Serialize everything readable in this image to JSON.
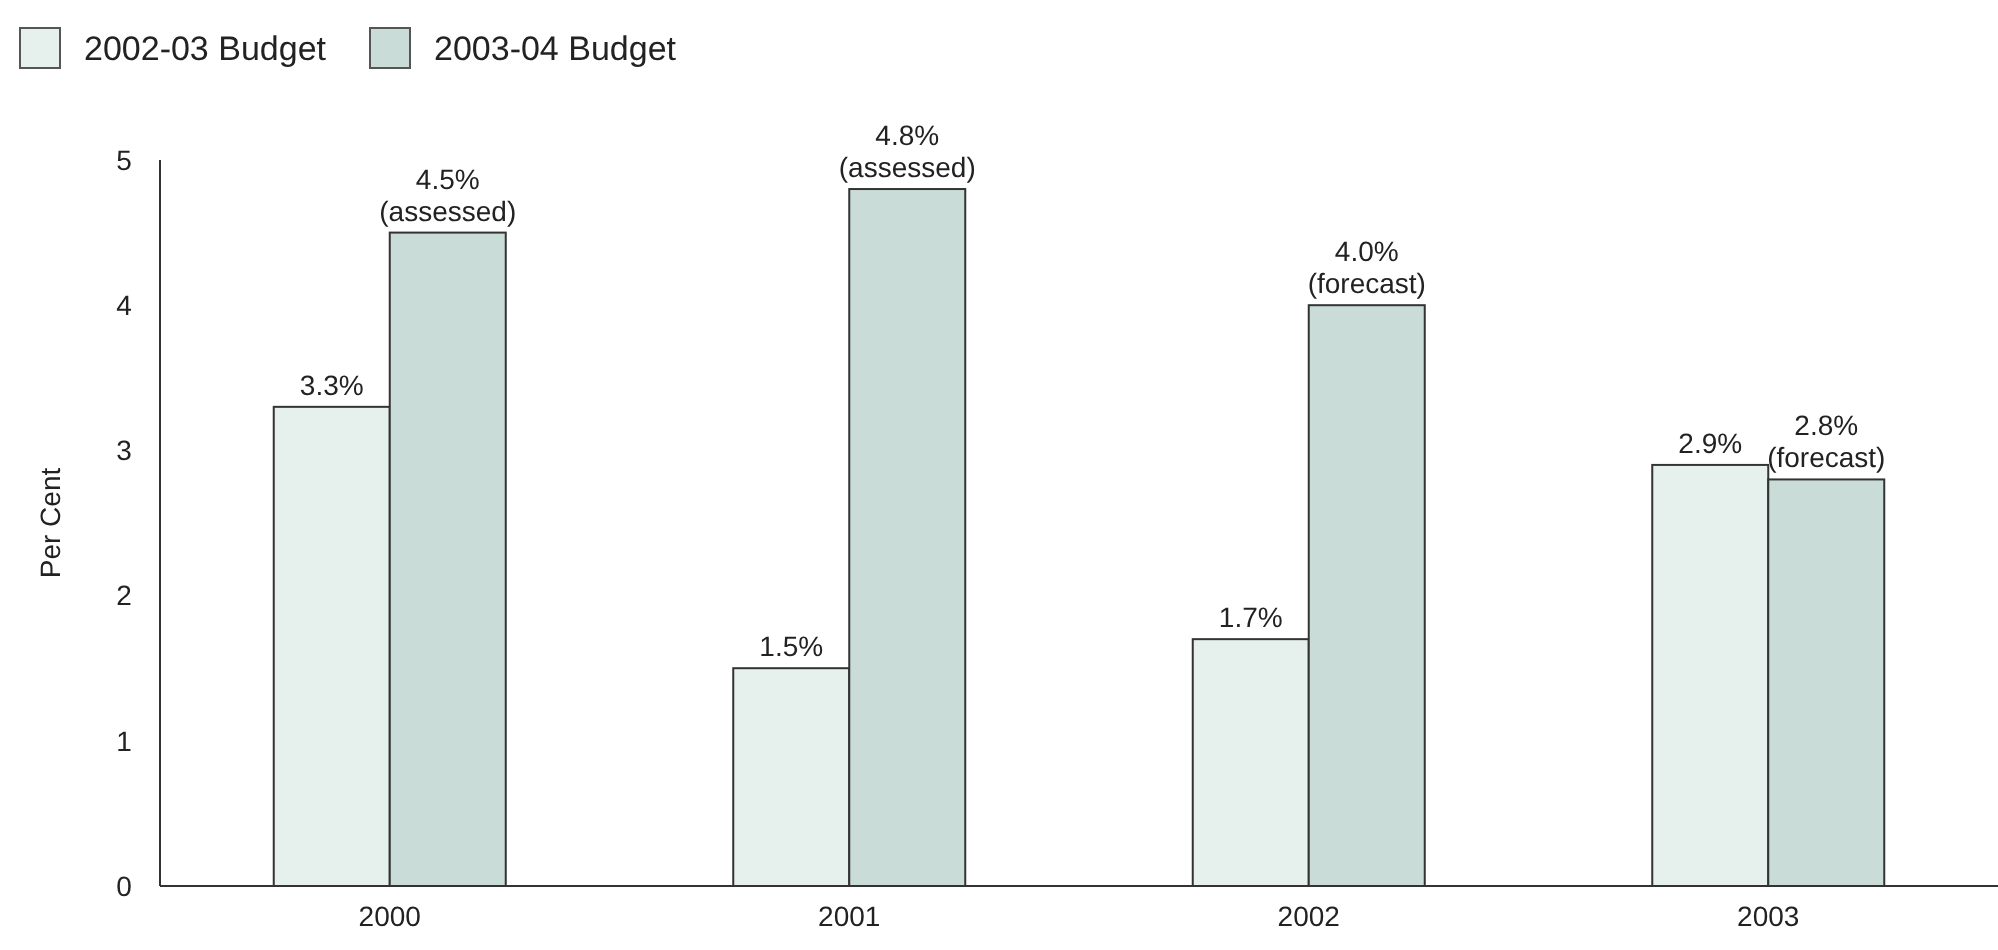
{
  "chart_data": {
    "type": "bar",
    "ylabel": "Per Cent",
    "categories": [
      "2000",
      "2001",
      "2002",
      "2003"
    ],
    "series": [
      {
        "name": "2002-03 Budget",
        "color": "#e6f0ec",
        "values": [
          3.3,
          1.5,
          1.7,
          2.9
        ],
        "value_labels": [
          "3.3%",
          "1.5%",
          "1.7%",
          "2.9%"
        ]
      },
      {
        "name": "2003-04 Budget",
        "color": "#c9dcd7",
        "values": [
          4.5,
          4.8,
          4.0,
          2.8
        ],
        "value_labels": [
          "4.5%\n(assessed)",
          "4.8%\n(assessed)",
          "4.0%\n(forecast)",
          "2.8%\n(forecast)"
        ]
      }
    ],
    "ylim": [
      0,
      5
    ],
    "yticks": [
      0,
      1,
      2,
      3,
      4,
      5
    ],
    "legend": "top left",
    "grid": false
  }
}
